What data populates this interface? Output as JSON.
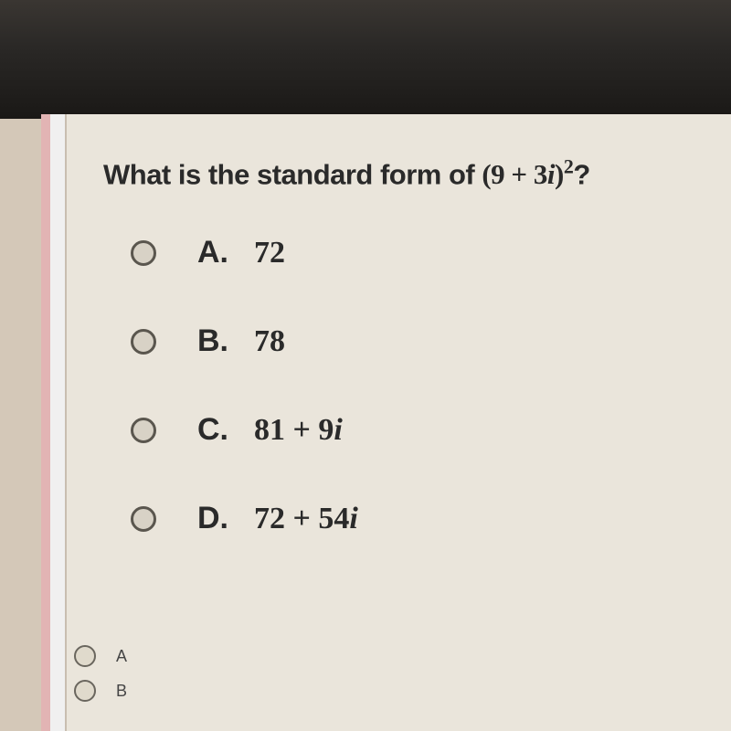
{
  "question": {
    "prompt_text": "What is the standard form of ",
    "expression_base": "(9 + 3",
    "expression_var": "i",
    "expression_close": ")",
    "expression_exp": "2",
    "prompt_end": "?"
  },
  "options": [
    {
      "letter": "A.",
      "value_plain": "72",
      "value_has_i": false,
      "i_coeff": ""
    },
    {
      "letter": "B.",
      "value_plain": "78",
      "value_has_i": false,
      "i_coeff": ""
    },
    {
      "letter": "C.",
      "value_plain": "81 + 9",
      "value_has_i": true,
      "i_coeff": "i"
    },
    {
      "letter": "D.",
      "value_plain": "72 + 54",
      "value_has_i": true,
      "i_coeff": "i"
    }
  ],
  "answer_choices": [
    {
      "label": "A"
    },
    {
      "label": "B"
    }
  ],
  "colors": {
    "page_bg": "#eae5db",
    "frame_dark": "#1a1816",
    "text": "#2a2a2a",
    "radio_border": "#5a564e"
  }
}
